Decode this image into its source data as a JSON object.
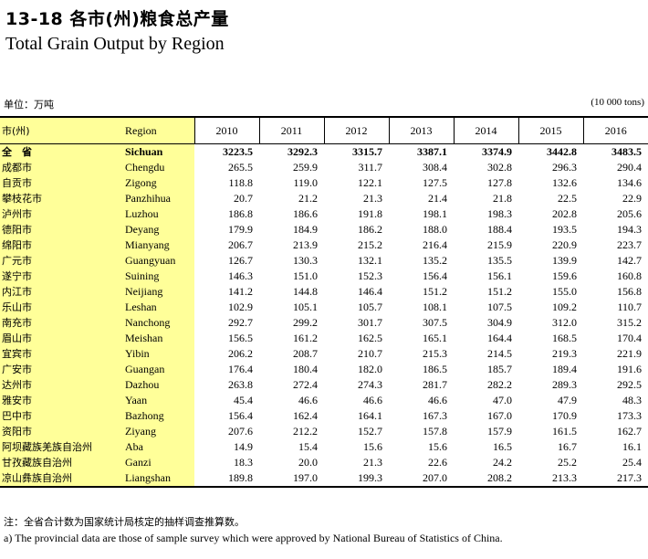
{
  "title": {
    "cn": "13-18  各市(州)粮食总产量",
    "en": "Total Grain Output  by Region"
  },
  "unit": {
    "cn": "单位：万吨",
    "en": "(10 000 tons)"
  },
  "table": {
    "header_cn": "市(州)",
    "header_en": "Region",
    "years": [
      "2010",
      "2011",
      "2012",
      "2013",
      "2014",
      "2015",
      "2016"
    ],
    "rows": [
      {
        "cn": "全　省",
        "en": "Sichuan",
        "values": [
          "3223.5",
          "3292.3",
          "3315.7",
          "3387.1",
          "3374.9",
          "3442.8",
          "3483.5"
        ]
      },
      {
        "cn": "成都市",
        "en": "Chengdu",
        "values": [
          "265.5",
          "259.9",
          "311.7",
          "308.4",
          "302.8",
          "296.3",
          "290.4"
        ]
      },
      {
        "cn": "自贡市",
        "en": "Zigong",
        "values": [
          "118.8",
          "119.0",
          "122.1",
          "127.5",
          "127.8",
          "132.6",
          "134.6"
        ]
      },
      {
        "cn": "攀枝花市",
        "en": "Panzhihua",
        "values": [
          "20.7",
          "21.2",
          "21.3",
          "21.4",
          "21.8",
          "22.5",
          "22.9"
        ]
      },
      {
        "cn": "泸州市",
        "en": "Luzhou",
        "values": [
          "186.8",
          "186.6",
          "191.8",
          "198.1",
          "198.3",
          "202.8",
          "205.6"
        ]
      },
      {
        "cn": "德阳市",
        "en": "Deyang",
        "values": [
          "179.9",
          "184.9",
          "186.2",
          "188.0",
          "188.4",
          "193.5",
          "194.3"
        ]
      },
      {
        "cn": "绵阳市",
        "en": "Mianyang",
        "values": [
          "206.7",
          "213.9",
          "215.2",
          "216.4",
          "215.9",
          "220.9",
          "223.7"
        ]
      },
      {
        "cn": "广元市",
        "en": "Guangyuan",
        "values": [
          "126.7",
          "130.3",
          "132.1",
          "135.2",
          "135.5",
          "139.9",
          "142.7"
        ]
      },
      {
        "cn": "遂宁市",
        "en": "Suining",
        "values": [
          "146.3",
          "151.0",
          "152.3",
          "156.4",
          "156.1",
          "159.6",
          "160.8"
        ]
      },
      {
        "cn": "内江市",
        "en": "Neijiang",
        "values": [
          "141.2",
          "144.8",
          "146.4",
          "151.2",
          "151.2",
          "155.0",
          "156.8"
        ]
      },
      {
        "cn": "乐山市",
        "en": "Leshan",
        "values": [
          "102.9",
          "105.1",
          "105.7",
          "108.1",
          "107.5",
          "109.2",
          "110.7"
        ]
      },
      {
        "cn": "南充市",
        "en": "Nanchong",
        "values": [
          "292.7",
          "299.2",
          "301.7",
          "307.5",
          "304.9",
          "312.0",
          "315.2"
        ]
      },
      {
        "cn": "眉山市",
        "en": "Meishan",
        "values": [
          "156.5",
          "161.2",
          "162.5",
          "165.1",
          "164.4",
          "168.5",
          "170.4"
        ]
      },
      {
        "cn": "宜宾市",
        "en": "Yibin",
        "values": [
          "206.2",
          "208.7",
          "210.7",
          "215.3",
          "214.5",
          "219.3",
          "221.9"
        ]
      },
      {
        "cn": "广安市",
        "en": "Guangan",
        "values": [
          "176.4",
          "180.4",
          "182.0",
          "186.5",
          "185.7",
          "189.4",
          "191.6"
        ]
      },
      {
        "cn": "达州市",
        "en": "Dazhou",
        "values": [
          "263.8",
          "272.4",
          "274.3",
          "281.7",
          "282.2",
          "289.3",
          "292.5"
        ]
      },
      {
        "cn": "雅安市",
        "en": "Yaan",
        "values": [
          "45.4",
          "46.6",
          "46.6",
          "46.6",
          "47.0",
          "47.9",
          "48.3"
        ]
      },
      {
        "cn": "巴中市",
        "en": "Bazhong",
        "values": [
          "156.4",
          "162.4",
          "164.1",
          "167.3",
          "167.0",
          "170.9",
          "173.3"
        ]
      },
      {
        "cn": "资阳市",
        "en": "Ziyang",
        "values": [
          "207.6",
          "212.2",
          "152.7",
          "157.8",
          "157.9",
          "161.5",
          "162.7"
        ]
      },
      {
        "cn": "阿坝藏族羌族自治州",
        "en": "Aba",
        "values": [
          "14.9",
          "15.4",
          "15.6",
          "15.6",
          "16.5",
          "16.7",
          "16.1"
        ]
      },
      {
        "cn": "甘孜藏族自治州",
        "en": "Ganzi",
        "values": [
          "18.3",
          "20.0",
          "21.3",
          "22.6",
          "24.2",
          "25.2",
          "25.4"
        ]
      },
      {
        "cn": "凉山彝族自治州",
        "en": "Liangshan",
        "values": [
          "189.8",
          "197.0",
          "199.3",
          "207.0",
          "208.2",
          "213.3",
          "217.3"
        ]
      }
    ]
  },
  "notes": {
    "cn": "注：全省合计数为国家统计局核定的抽样调查推算数。",
    "en": "a) The provincial data are those of sample survey which were approved by National Bureau of Statistics of China."
  }
}
